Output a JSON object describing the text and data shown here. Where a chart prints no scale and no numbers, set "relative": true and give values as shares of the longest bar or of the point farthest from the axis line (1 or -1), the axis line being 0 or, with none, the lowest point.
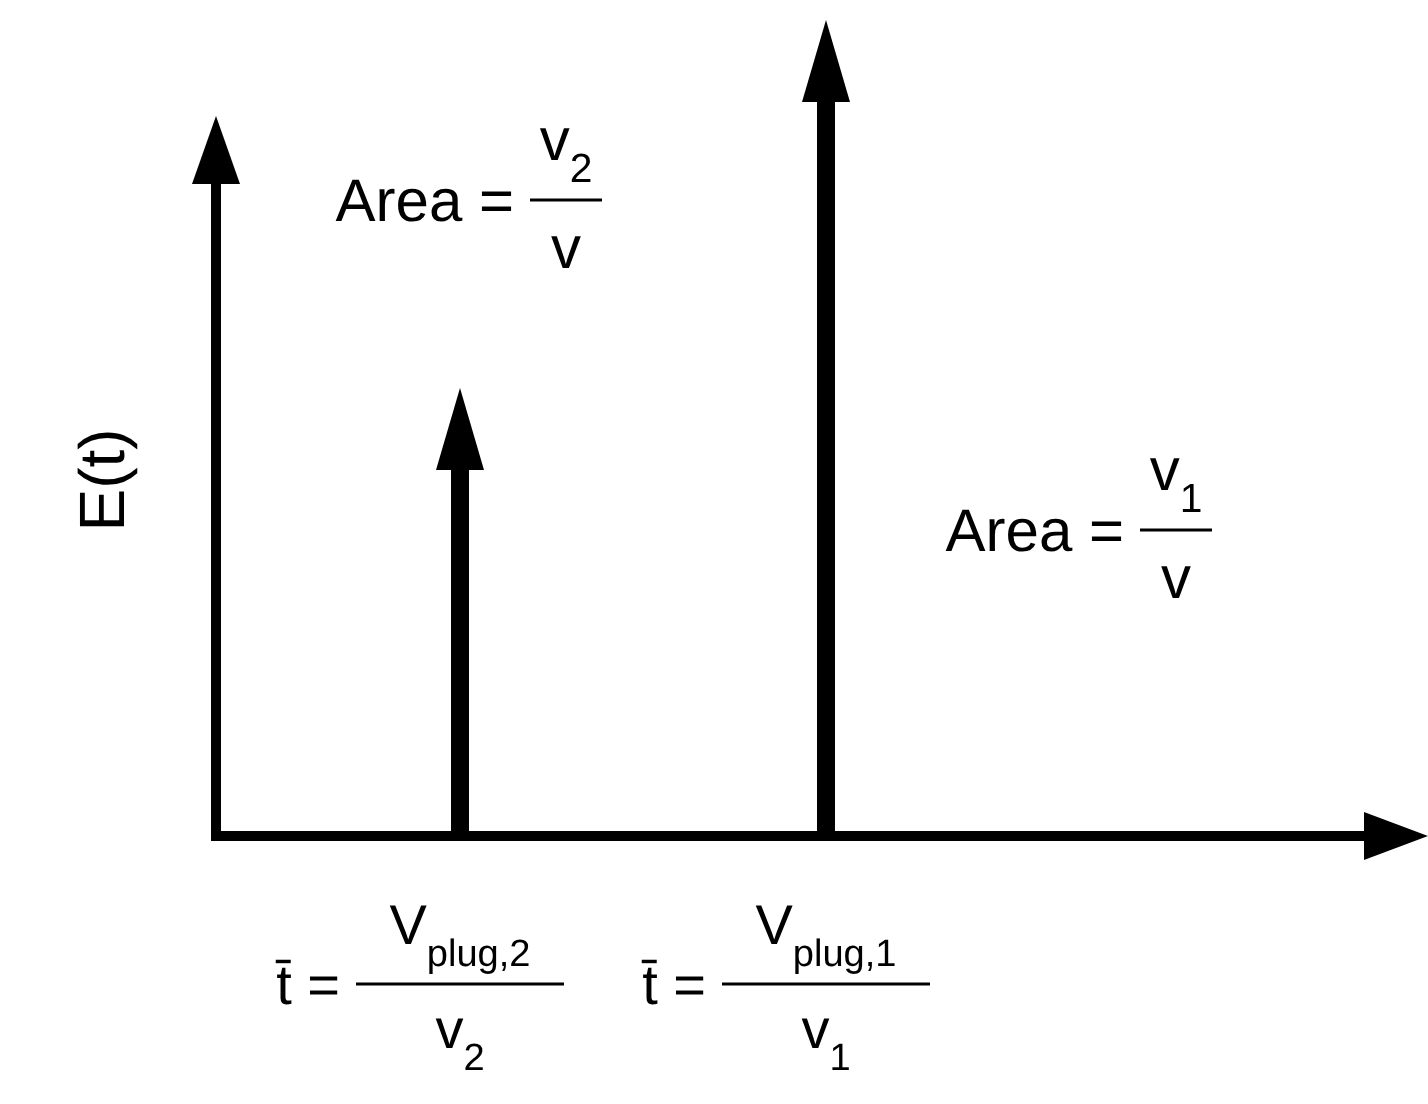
{
  "chart_data": {
    "type": "bar",
    "relative": true,
    "ylabel": "E(t)",
    "categories": [
      "t̄ = V$_{plug,2}$ v$_{2}$",
      "t̄ = V$_{plug,1}$ v$_{1}$"
    ],
    "values": [
      0.5,
      1
    ],
    "color": "#000000",
    "annotations": [
      "Area = v$_{2}$ v",
      "Area = v$_{1}$ v"
    ]
  }
}
